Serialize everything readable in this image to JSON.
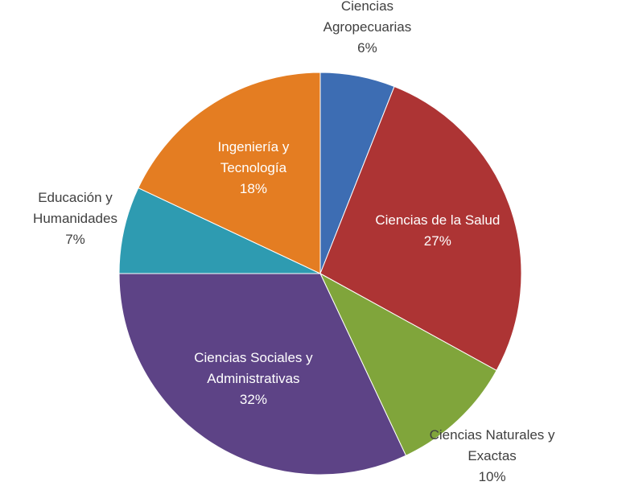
{
  "chart_data": {
    "type": "pie",
    "categories": [
      "Ciencias Agropecuarias",
      "Ciencias de la Salud",
      "Ciencias Naturales y Exactas",
      "Ciencias Sociales y Administrativas",
      "Educación y Humanidades",
      "Ingeniería y Tecnología"
    ],
    "values": [
      6,
      27,
      10,
      32,
      7,
      18
    ],
    "value_labels": [
      "6%",
      "27%",
      "10%",
      "32%",
      "7%",
      "18%"
    ],
    "colors": [
      "#3d6db3",
      "#ad3434",
      "#80a53b",
      "#5d4386",
      "#2e9bb1",
      "#e47d22"
    ]
  }
}
